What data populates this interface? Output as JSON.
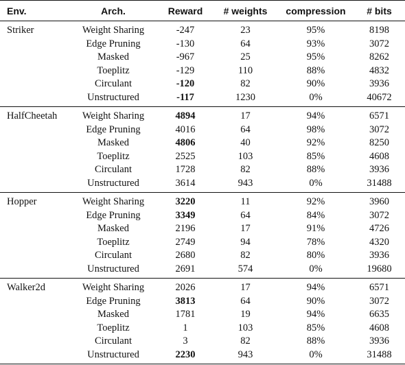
{
  "headers": {
    "env": "Env.",
    "arch": "Arch.",
    "reward": "Reward",
    "weights": "# weights",
    "compression": "compression",
    "bits": "# bits"
  },
  "groups": [
    {
      "env": "Striker",
      "rows": [
        {
          "arch": "Weight Sharing",
          "reward": "-247",
          "reward_bold": false,
          "weights": "23",
          "compression": "95%",
          "bits": "8198"
        },
        {
          "arch": "Edge Pruning",
          "reward": "-130",
          "reward_bold": false,
          "weights": "64",
          "compression": "93%",
          "bits": "3072"
        },
        {
          "arch": "Masked",
          "reward": "-967",
          "reward_bold": false,
          "weights": "25",
          "compression": "95%",
          "bits": "8262"
        },
        {
          "arch": "Toeplitz",
          "reward": "-129",
          "reward_bold": false,
          "weights": "110",
          "compression": "88%",
          "bits": "4832"
        },
        {
          "arch": "Circulant",
          "reward": "-120",
          "reward_bold": true,
          "weights": "82",
          "compression": "90%",
          "bits": "3936"
        },
        {
          "arch": "Unstructured",
          "reward": "-117",
          "reward_bold": true,
          "weights": "1230",
          "compression": "0%",
          "bits": "40672"
        }
      ]
    },
    {
      "env": "HalfCheetah",
      "rows": [
        {
          "arch": "Weight Sharing",
          "reward": "4894",
          "reward_bold": true,
          "weights": "17",
          "compression": "94%",
          "bits": "6571"
        },
        {
          "arch": "Edge Pruning",
          "reward": "4016",
          "reward_bold": false,
          "weights": "64",
          "compression": "98%",
          "bits": "3072"
        },
        {
          "arch": "Masked",
          "reward": "4806",
          "reward_bold": true,
          "weights": "40",
          "compression": "92%",
          "bits": "8250"
        },
        {
          "arch": "Toeplitz",
          "reward": "2525",
          "reward_bold": false,
          "weights": "103",
          "compression": "85%",
          "bits": "4608"
        },
        {
          "arch": "Circulant",
          "reward": "1728",
          "reward_bold": false,
          "weights": "82",
          "compression": "88%",
          "bits": "3936"
        },
        {
          "arch": "Unstructured",
          "reward": "3614",
          "reward_bold": false,
          "weights": "943",
          "compression": "0%",
          "bits": "31488"
        }
      ]
    },
    {
      "env": "Hopper",
      "rows": [
        {
          "arch": "Weight Sharing",
          "reward": "3220",
          "reward_bold": true,
          "weights": "11",
          "compression": "92%",
          "bits": "3960"
        },
        {
          "arch": "Edge Pruning",
          "reward": "3349",
          "reward_bold": true,
          "weights": "64",
          "compression": "84%",
          "bits": "3072"
        },
        {
          "arch": "Masked",
          "reward": "2196",
          "reward_bold": false,
          "weights": "17",
          "compression": "91%",
          "bits": "4726"
        },
        {
          "arch": "Toeplitz",
          "reward": "2749",
          "reward_bold": false,
          "weights": "94",
          "compression": "78%",
          "bits": "4320"
        },
        {
          "arch": "Circulant",
          "reward": "2680",
          "reward_bold": false,
          "weights": "82",
          "compression": "80%",
          "bits": "3936"
        },
        {
          "arch": "Unstructured",
          "reward": "2691",
          "reward_bold": false,
          "weights": "574",
          "compression": "0%",
          "bits": "19680"
        }
      ]
    },
    {
      "env": "Walker2d",
      "rows": [
        {
          "arch": "Weight Sharing",
          "reward": "2026",
          "reward_bold": false,
          "weights": "17",
          "compression": "94%",
          "bits": "6571"
        },
        {
          "arch": "Edge Pruning",
          "reward": "3813",
          "reward_bold": true,
          "weights": "64",
          "compression": "90%",
          "bits": "3072"
        },
        {
          "arch": "Masked",
          "reward": "1781",
          "reward_bold": false,
          "weights": "19",
          "compression": "94%",
          "bits": "6635"
        },
        {
          "arch": "Toeplitz",
          "reward": "1",
          "reward_bold": false,
          "weights": "103",
          "compression": "85%",
          "bits": "4608"
        },
        {
          "arch": "Circulant",
          "reward": "3",
          "reward_bold": false,
          "weights": "82",
          "compression": "88%",
          "bits": "3936"
        },
        {
          "arch": "Unstructured",
          "reward": "2230",
          "reward_bold": true,
          "weights": "943",
          "compression": "0%",
          "bits": "31488"
        }
      ]
    }
  ]
}
